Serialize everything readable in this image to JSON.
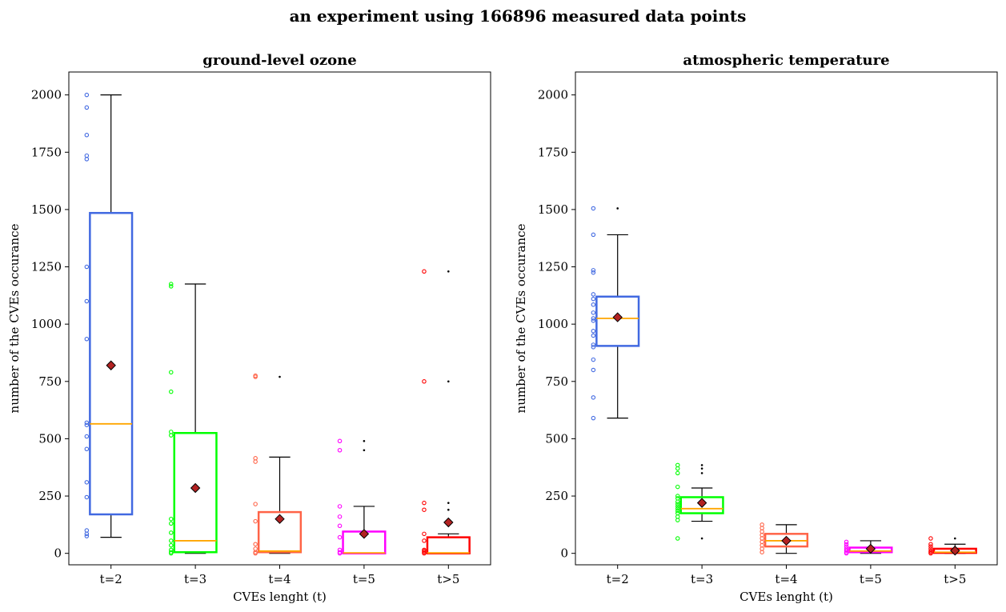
{
  "title": "an experiment using 166896 measured data points",
  "chart_data": [
    {
      "type": "box",
      "title": "ground-level ozone",
      "xlabel": "CVEs lenght (t)",
      "ylabel": "number of the CVEs occurance",
      "ylim": [
        -50,
        2100
      ],
      "yticks": [
        0,
        250,
        500,
        750,
        1000,
        1250,
        1500,
        1750,
        2000
      ],
      "categories": [
        "t=2",
        "t=3",
        "t=4",
        "t=5",
        "t>5"
      ],
      "colors": [
        "#4169e1",
        "#00ff00",
        "#ff6347",
        "#ff00ff",
        "#ff0000"
      ],
      "median_color": "#ffa500",
      "mean_color": "#b22222",
      "boxes": [
        {
          "q1": 170,
          "median": 565,
          "q3": 1485,
          "whislo": 70,
          "whishi": 2000,
          "mean": 820,
          "fliers": [],
          "points": [
            2000,
            1945,
            1825,
            1735,
            1720,
            1250,
            1100,
            935,
            570,
            560,
            510,
            455,
            310,
            245,
            100,
            85,
            75
          ]
        },
        {
          "q1": 5,
          "median": 55,
          "q3": 525,
          "whislo": 0,
          "whishi": 1175,
          "mean": 285,
          "fliers": [],
          "points": [
            1175,
            1165,
            790,
            705,
            530,
            515,
            150,
            130,
            90,
            55,
            35,
            15,
            5,
            0
          ]
        },
        {
          "q1": 5,
          "median": 10,
          "q3": 180,
          "whislo": 0,
          "whishi": 420,
          "mean": 150,
          "fliers": [
            770
          ],
          "points": [
            775,
            770,
            415,
            400,
            215,
            140,
            40,
            20,
            5,
            0
          ]
        },
        {
          "q1": 0,
          "median": 2,
          "q3": 95,
          "whislo": 0,
          "whishi": 205,
          "mean": 85,
          "fliers": [
            490,
            450
          ],
          "points": [
            490,
            450,
            205,
            160,
            120,
            70,
            15,
            5,
            0
          ]
        },
        {
          "q1": 0,
          "median": 2,
          "q3": 70,
          "whislo": 0,
          "whishi": 85,
          "mean": 135,
          "fliers": [
            1230,
            750,
            220,
            190
          ],
          "points": [
            1230,
            750,
            220,
            190,
            85,
            55,
            15,
            10,
            5,
            0
          ]
        }
      ]
    },
    {
      "type": "box",
      "title": "atmospheric temperature",
      "xlabel": "CVEs lenght (t)",
      "ylabel": "number of the CVEs occurance",
      "ylim": [
        -50,
        2100
      ],
      "yticks": [
        0,
        250,
        500,
        750,
        1000,
        1250,
        1500,
        1750,
        2000
      ],
      "categories": [
        "t=2",
        "t=3",
        "t=4",
        "t=5",
        "t>5"
      ],
      "colors": [
        "#4169e1",
        "#00ff00",
        "#ff6347",
        "#ff00ff",
        "#ff0000"
      ],
      "median_color": "#ffa500",
      "mean_color": "#b22222",
      "boxes": [
        {
          "q1": 905,
          "median": 1025,
          "q3": 1120,
          "whislo": 590,
          "whishi": 1390,
          "mean": 1030,
          "fliers": [
            1505
          ],
          "points": [
            1505,
            1390,
            1235,
            1225,
            1130,
            1110,
            1085,
            1050,
            1025,
            1015,
            970,
            950,
            910,
            900,
            845,
            800,
            680,
            590
          ]
        },
        {
          "q1": 175,
          "median": 195,
          "q3": 245,
          "whislo": 140,
          "whishi": 285,
          "mean": 220,
          "fliers": [
            385,
            370,
            350,
            65
          ],
          "points": [
            385,
            370,
            350,
            290,
            250,
            240,
            225,
            215,
            205,
            195,
            185,
            175,
            160,
            145,
            65
          ]
        },
        {
          "q1": 30,
          "median": 55,
          "q3": 85,
          "whislo": 0,
          "whishi": 125,
          "mean": 55,
          "fliers": [],
          "points": [
            125,
            110,
            95,
            80,
            65,
            50,
            35,
            20,
            5
          ]
        },
        {
          "q1": 5,
          "median": 10,
          "q3": 25,
          "whislo": 0,
          "whishi": 55,
          "mean": 20,
          "fliers": [],
          "points": [
            50,
            40,
            30,
            20,
            12,
            5,
            0
          ]
        },
        {
          "q1": 2,
          "median": 5,
          "q3": 20,
          "whislo": 0,
          "whishi": 40,
          "mean": 12,
          "fliers": [
            65
          ],
          "points": [
            65,
            40,
            30,
            20,
            10,
            5,
            0
          ]
        }
      ]
    }
  ]
}
